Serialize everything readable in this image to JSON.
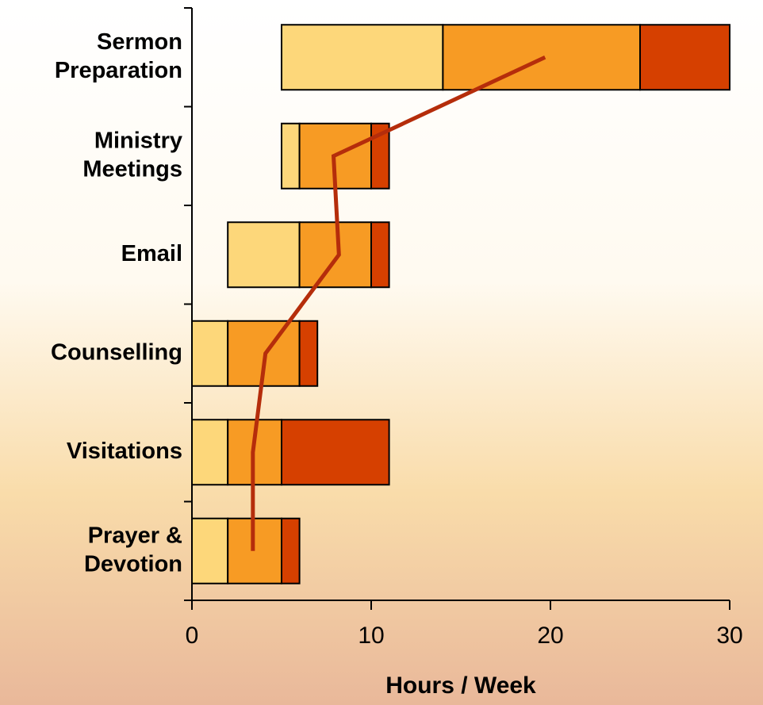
{
  "chart_data": {
    "type": "bar",
    "orientation": "horizontal",
    "stacked": true,
    "categories": [
      [
        "Sermon",
        "Preparation"
      ],
      [
        "Ministry",
        "Meetings"
      ],
      [
        "Email"
      ],
      [
        "Counselling"
      ],
      [
        "Visitations"
      ],
      [
        "Prayer &",
        "Devotion"
      ]
    ],
    "series": [
      {
        "color": "transparent",
        "values": [
          5,
          5,
          2,
          0,
          0,
          0
        ]
      },
      {
        "color": "#FDD77A",
        "values": [
          9,
          1,
          4,
          2,
          2,
          2
        ]
      },
      {
        "color": "#F79B24",
        "values": [
          11,
          4,
          4,
          4,
          3,
          3
        ]
      },
      {
        "color": "#D64000",
        "values": [
          5,
          1,
          1,
          1,
          6,
          1
        ]
      },
      {
        "type": "line",
        "color": "#B52D0B",
        "values": [
          19.7,
          7.9,
          8.2,
          4.1,
          3.4,
          3.4
        ]
      }
    ],
    "xlim": [
      0,
      30
    ],
    "xticks": [
      0,
      10,
      20,
      30
    ],
    "xlabel": "Hours / Week"
  }
}
